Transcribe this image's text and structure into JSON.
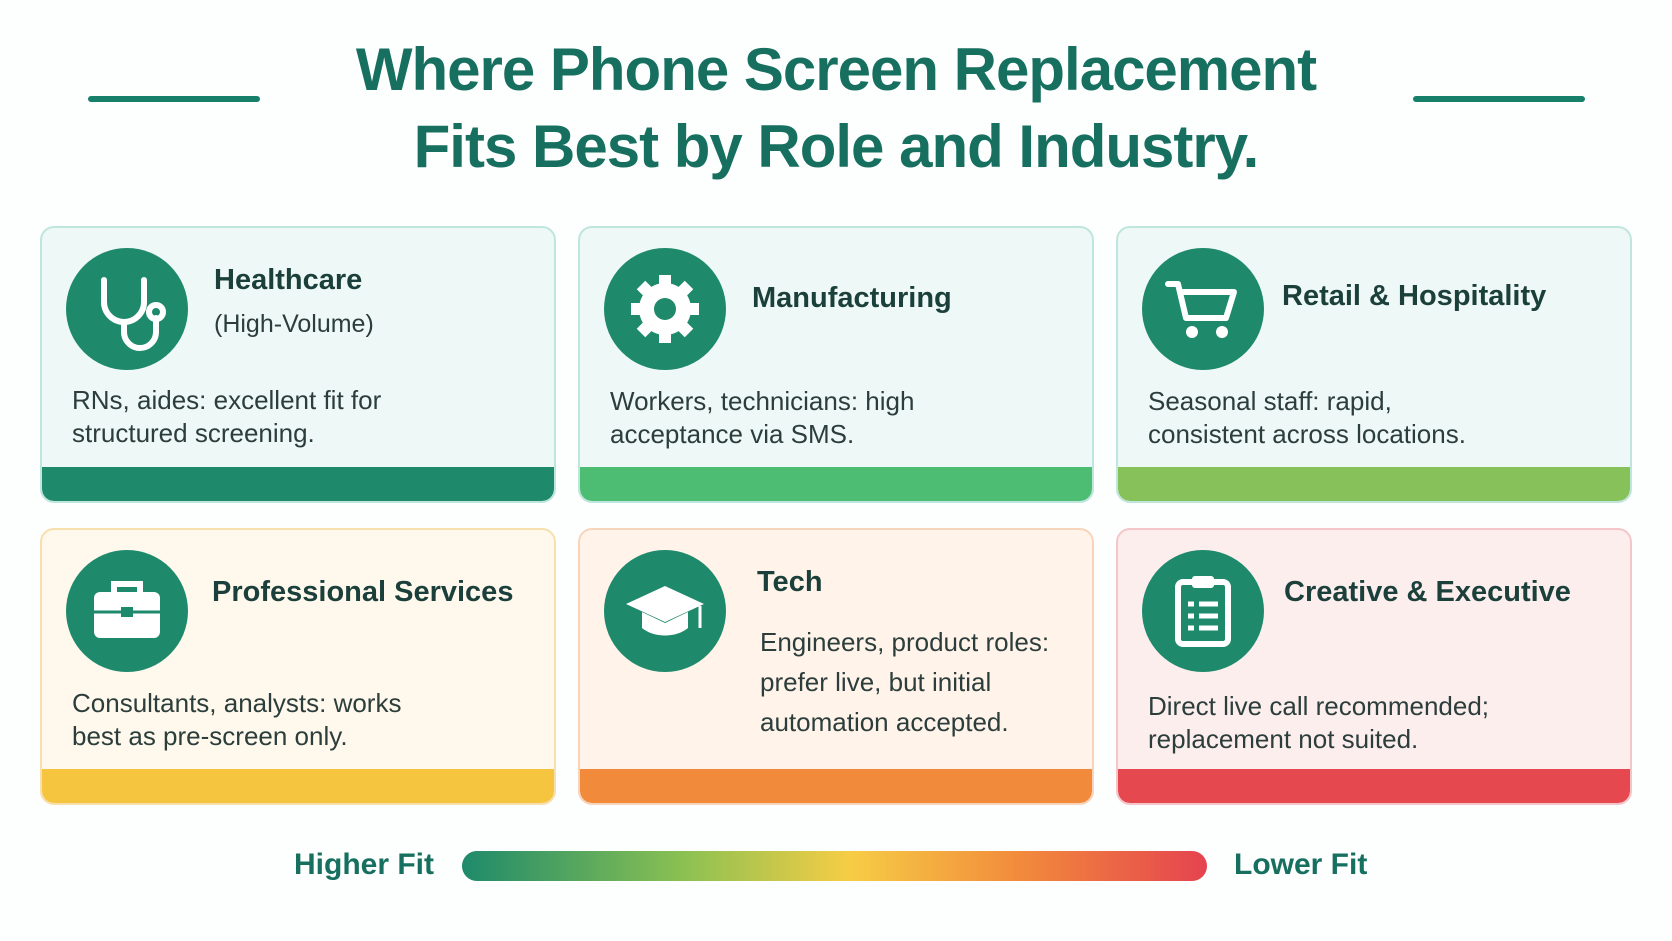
{
  "title": [
    "Where Phone Screen Replacement",
    "Fits Best by Role and Industry."
  ],
  "cards": [
    {
      "heading": "Healthcare",
      "subheading": "(High-Volume)",
      "description": [
        "RNs, aides: excellent fit for",
        "structured screening."
      ]
    },
    {
      "heading": "Manufacturing",
      "description": [
        "Workers, technicians: high",
        "acceptance via SMS."
      ]
    },
    {
      "heading": "Retail & Hospitality",
      "description": [
        "Seasonal staff: rapid,",
        "consistent across locations."
      ]
    },
    {
      "heading": "Professional Services",
      "description": [
        "Consultants, analysts: works",
        "best as pre-screen only."
      ]
    },
    {
      "heading": "Tech",
      "description": [
        "Engineers, product roles:",
        "prefer live, but initial",
        "automation accepted."
      ]
    },
    {
      "heading": "Creative & Executive",
      "description": [
        "Direct live call recommended;",
        "replacement not suited."
      ]
    }
  ],
  "legend": {
    "high": "Higher Fit",
    "low": "Lower Fit"
  }
}
